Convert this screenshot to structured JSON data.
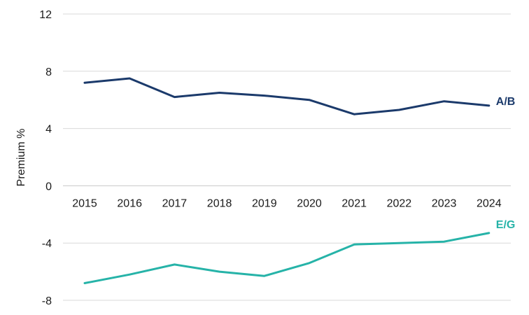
{
  "chart_data": {
    "type": "line",
    "title": "",
    "xlabel": "",
    "ylabel": "Premium %",
    "categories": [
      "2015",
      "2016",
      "2017",
      "2018",
      "2019",
      "2020",
      "2021",
      "2022",
      "2023",
      "2024"
    ],
    "ylim": [
      -8,
      12
    ],
    "yticks": [
      -8,
      -4,
      0,
      4,
      8,
      12
    ],
    "grid": true,
    "legend": "inline labels at line ends",
    "series": [
      {
        "name": "A/B",
        "color": "#1b3a6b",
        "values": [
          7.2,
          7.5,
          6.2,
          6.5,
          6.3,
          6.0,
          5.0,
          5.3,
          5.9,
          5.6
        ]
      },
      {
        "name": "E/G",
        "color": "#26b3a8",
        "values": [
          -6.8,
          -6.2,
          -5.5,
          -6.0,
          -6.3,
          -5.4,
          -4.1,
          -4.0,
          -3.9,
          -3.3
        ]
      }
    ]
  }
}
